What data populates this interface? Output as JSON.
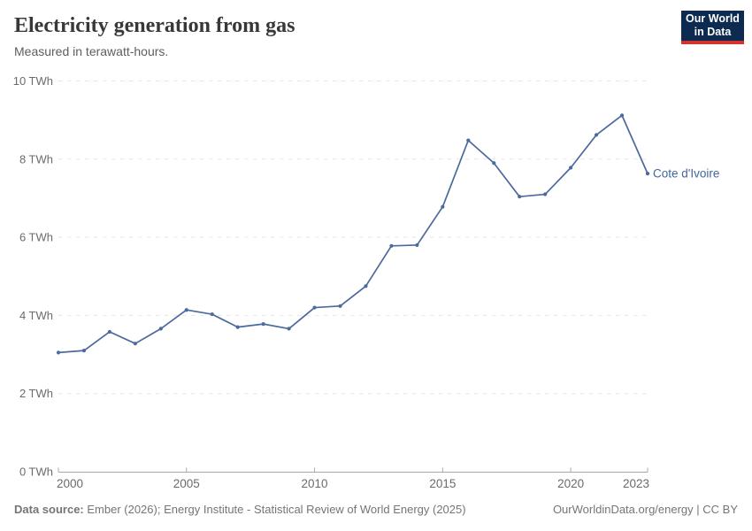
{
  "header": {
    "title": "Electricity generation from gas",
    "subtitle": "Measured in terawatt-hours.",
    "logo": {
      "line1": "Our World",
      "line2": "in Data"
    }
  },
  "chart_data": {
    "type": "line",
    "title": "Electricity generation from gas",
    "subtitle": "Measured in terawatt-hours.",
    "x": [
      2000,
      2001,
      2002,
      2003,
      2004,
      2005,
      2006,
      2007,
      2008,
      2009,
      2010,
      2011,
      2012,
      2013,
      2014,
      2015,
      2016,
      2017,
      2018,
      2019,
      2020,
      2021,
      2022,
      2023
    ],
    "series": [
      {
        "name": "Cote d'Ivoire",
        "values": [
          3.05,
          3.1,
          3.58,
          3.28,
          3.66,
          4.14,
          4.03,
          3.7,
          3.78,
          3.66,
          4.2,
          4.24,
          4.75,
          5.78,
          5.8,
          6.78,
          8.48,
          7.9,
          7.04,
          7.1,
          7.78,
          8.62,
          9.12,
          7.63
        ]
      }
    ],
    "end_label": "Cote d'Ivoire",
    "xlabel": "",
    "ylabel": "TWh",
    "xlim": [
      2000,
      2023
    ],
    "ylim": [
      0,
      10
    ],
    "xticks": [
      2000,
      2005,
      2010,
      2015,
      2020,
      2023
    ],
    "yticks": [
      0,
      2,
      4,
      6,
      8,
      10
    ],
    "ytick_labels": [
      "0 TWh",
      "2 TWh",
      "4 TWh",
      "6 TWh",
      "8 TWh",
      "10 TWh"
    ],
    "grid": "horizontal-dashed",
    "legend_position": "end-of-line-label"
  },
  "colors": {
    "line": "#4c6a9c",
    "end_label": "#41669b",
    "grid": "#e7e7e7",
    "axis": "#a8a8a8",
    "tick_text": "#6b6b6b",
    "logo_bg": "#0d2a50",
    "logo_accent": "#d0342c"
  },
  "footer": {
    "datasource_label": "Data source:",
    "datasource_text": " Ember (2026); Energy Institute - Statistical Review of World Energy (2025)",
    "link_text": "OurWorldinData.org/energy | CC BY"
  }
}
